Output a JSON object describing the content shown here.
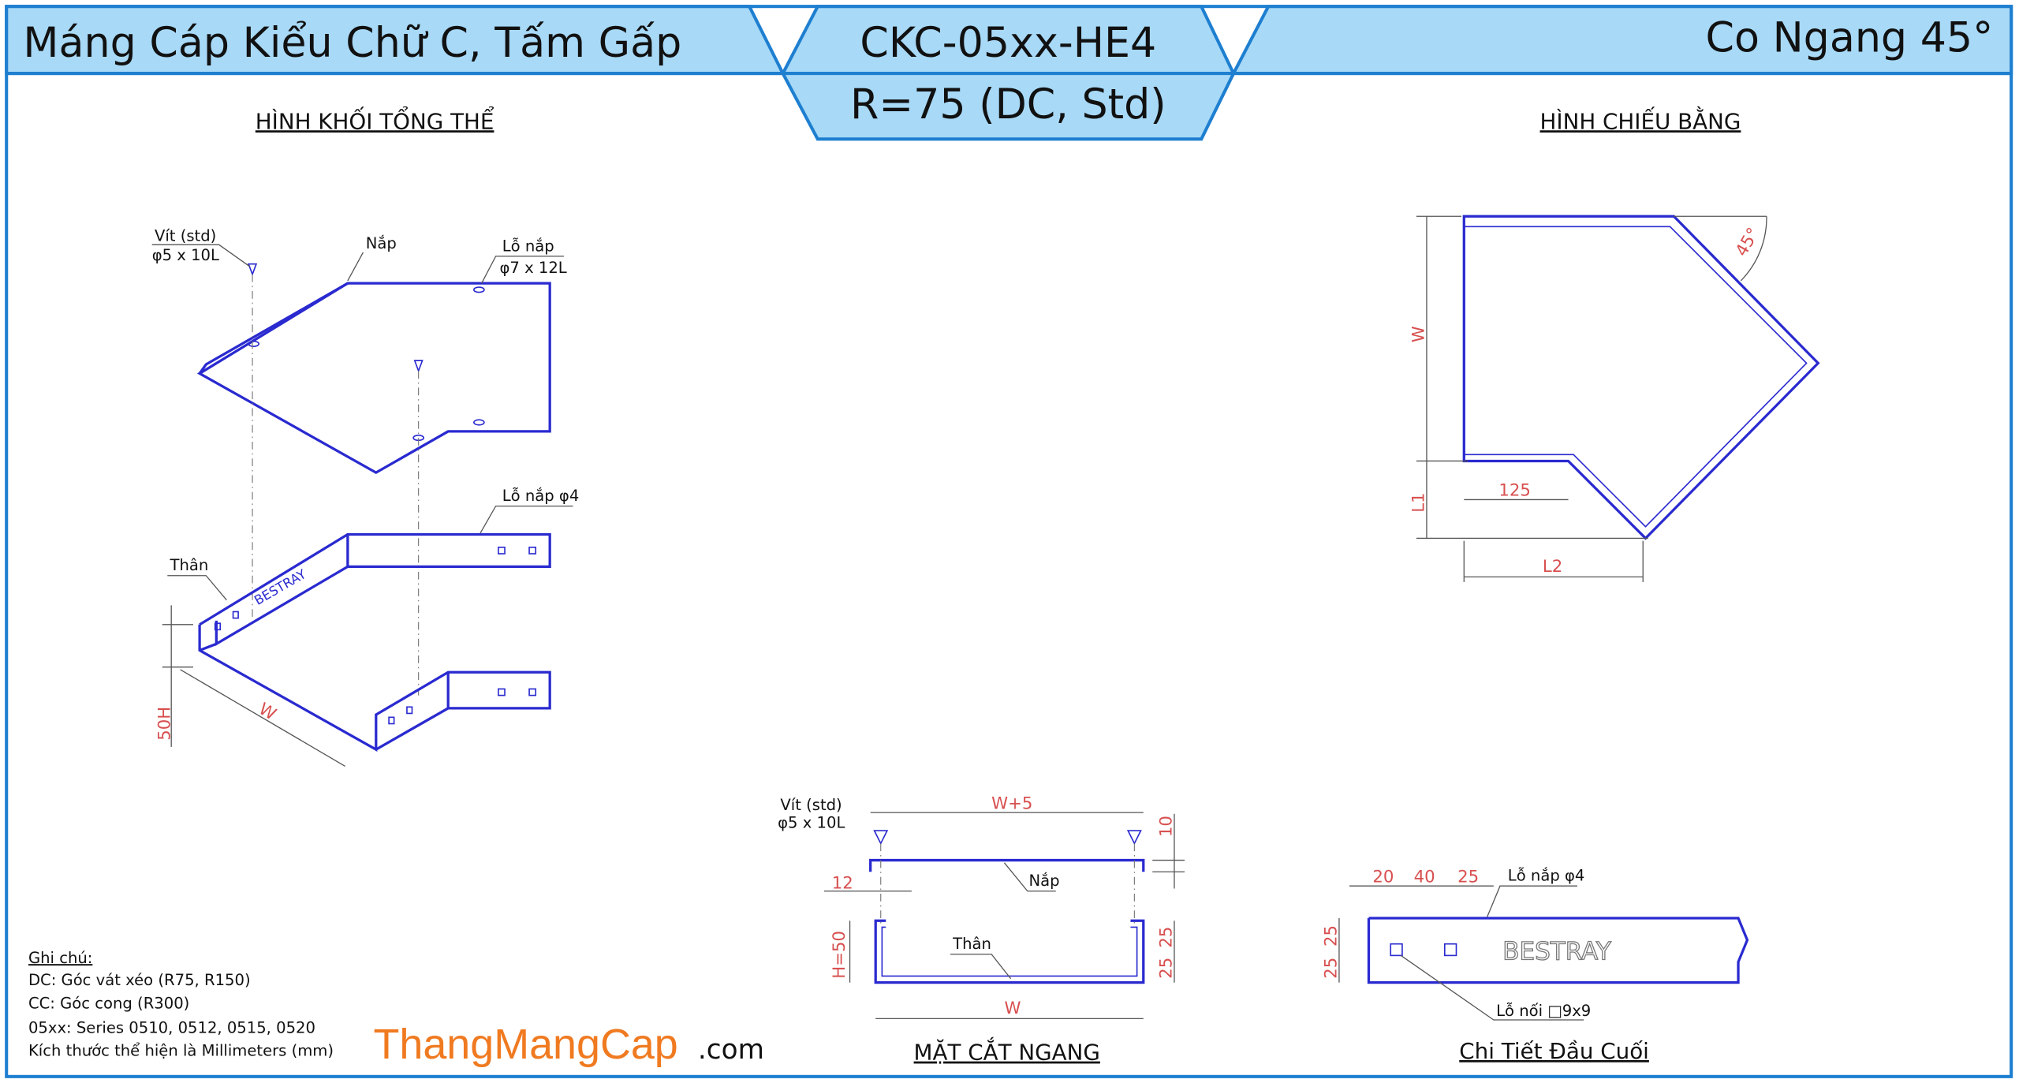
{
  "header": {
    "title_left": "Máng Cáp Kiểu Chữ C, Tấm Gấp",
    "code": "CKC-05xx-HE4",
    "variant": "R=75 (DC, Std)",
    "title_right": "Co Ngang 45°"
  },
  "views": {
    "iso": "HÌNH KHỐI TỔNG THỂ",
    "plan": "HÌNH CHIẾU BẰNG",
    "section": "MẶT CẮT NGANG",
    "detail": "Chi Tiết Đầu Cuối"
  },
  "iso": {
    "screw": "Vít (std)",
    "screw_size": "φ5 x 10L",
    "lid": "Nắp",
    "lid_hole": "Lỗ nắp",
    "lid_hole_size": "φ7 x 12L",
    "body_hole": "Lỗ nắp φ4",
    "body": "Thân",
    "width": "W",
    "height": "50H",
    "brand": "BESTRAY"
  },
  "plan": {
    "width": "W",
    "angle": "45°",
    "offset": "125",
    "l1": "L1",
    "l2": "L2"
  },
  "section": {
    "screw": "Vít (std)",
    "screw_size": "φ5 x 10L",
    "lid_width": "W+5",
    "lid_gap": "10",
    "lid": "Nắp",
    "lip": "12",
    "height": "H=50",
    "body": "Thân",
    "upper": "25",
    "lower": "25",
    "width": "W"
  },
  "detail": {
    "d1": "20",
    "d2": "40",
    "d3": "25",
    "hole": "Lỗ nắp φ4",
    "h1": "25",
    "h2": "25",
    "brand": "BESTRAY",
    "joint": "Lỗ nối □9x9"
  },
  "notes": {
    "title": "Ghi chú:",
    "lines": [
      "DC: Góc vát xéo (R75, R150)",
      "CC: Góc cong (R300)",
      "05xx: Series 0510, 0512, 0515, 0520",
      "Kích thước thể hiện là Millimeters (mm)"
    ]
  },
  "logo": {
    "name": "ThangMangCap",
    "suffix": ".com"
  }
}
